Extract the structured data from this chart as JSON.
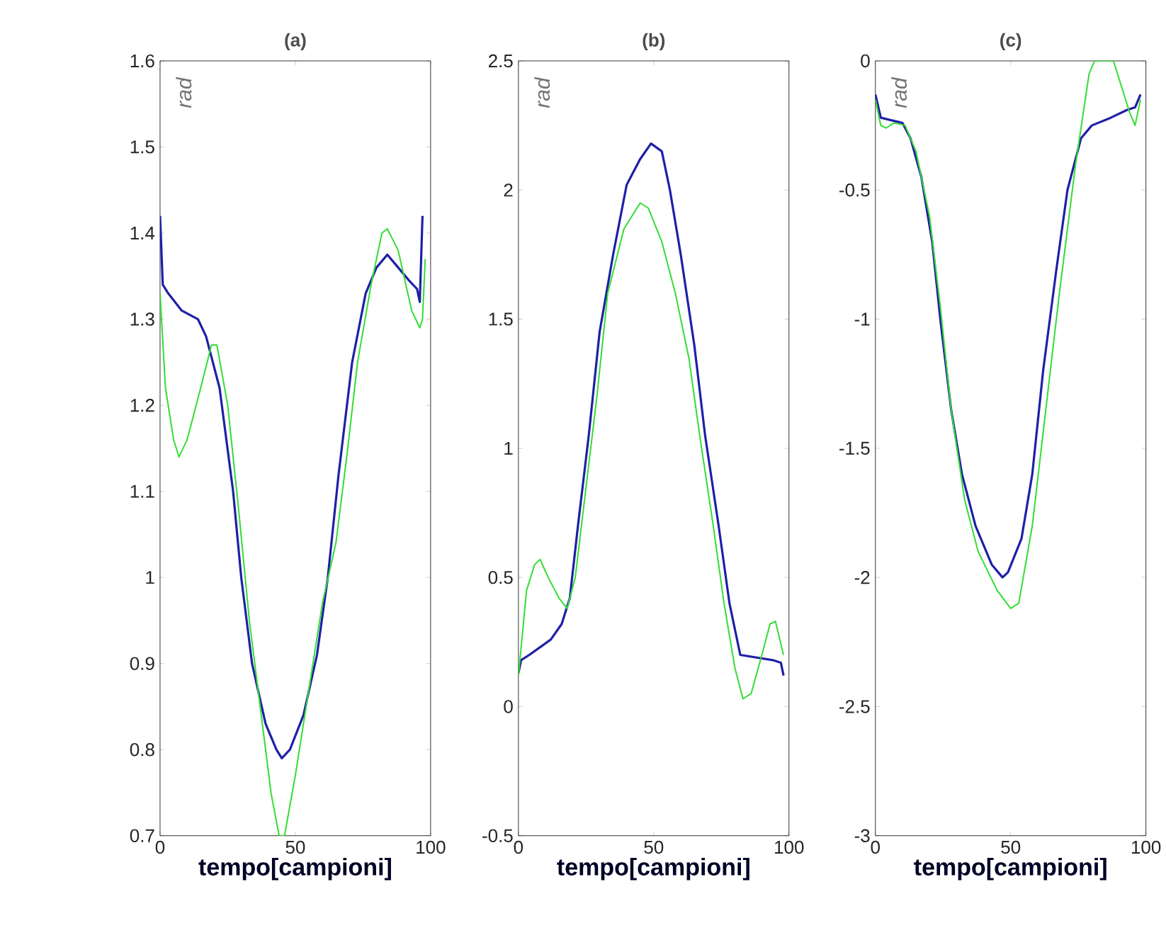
{
  "chart_data": [
    {
      "type": "line",
      "title": "(a)",
      "xlabel": "tempo[campioni]",
      "ylabel": "rad",
      "xlim": [
        0,
        100
      ],
      "ylim": [
        0.7,
        1.6
      ],
      "xticks": [
        0,
        50,
        100
      ],
      "yticks": [
        0.7,
        0.8,
        0.9,
        1,
        1.1,
        1.2,
        1.3,
        1.4,
        1.5,
        1.6
      ],
      "series": [
        {
          "color": "#1f1fa8",
          "x": [
            0,
            1,
            3,
            8,
            14,
            17,
            22,
            27,
            30,
            34,
            39,
            43,
            45,
            48,
            53,
            58,
            62,
            66,
            71,
            76,
            80,
            84,
            88,
            92,
            95,
            96,
            97
          ],
          "values": [
            1.42,
            1.34,
            1.33,
            1.31,
            1.3,
            1.28,
            1.22,
            1.1,
            1.0,
            0.9,
            0.83,
            0.8,
            0.79,
            0.8,
            0.84,
            0.91,
            1.0,
            1.12,
            1.25,
            1.33,
            1.36,
            1.375,
            1.36,
            1.345,
            1.335,
            1.32,
            1.42
          ]
        },
        {
          "color": "#33dd33",
          "x": [
            0,
            2,
            5,
            7,
            10,
            15,
            19,
            21,
            25,
            29,
            33,
            37,
            41,
            44,
            46,
            50,
            55,
            60,
            65,
            69,
            73,
            78,
            82,
            84,
            88,
            93,
            96,
            97,
            98
          ],
          "values": [
            1.33,
            1.22,
            1.16,
            1.14,
            1.16,
            1.22,
            1.27,
            1.27,
            1.2,
            1.08,
            0.95,
            0.85,
            0.75,
            0.7,
            0.7,
            0.77,
            0.87,
            0.97,
            1.04,
            1.14,
            1.25,
            1.34,
            1.4,
            1.405,
            1.38,
            1.31,
            1.29,
            1.3,
            1.37
          ]
        }
      ]
    },
    {
      "type": "line",
      "title": "(b)",
      "xlabel": "tempo[campioni]",
      "ylabel": "rad",
      "xlim": [
        0,
        100
      ],
      "ylim": [
        -0.5,
        2.5
      ],
      "xticks": [
        0,
        50,
        100
      ],
      "yticks": [
        -0.5,
        0,
        0.5,
        1,
        1.5,
        2,
        2.5
      ],
      "series": [
        {
          "color": "#1f1fa8",
          "x": [
            0,
            1,
            4,
            8,
            12,
            16,
            19,
            22,
            26,
            30,
            35,
            40,
            45,
            49,
            53,
            56,
            60,
            65,
            69,
            74,
            78,
            82,
            88,
            94,
            97,
            98
          ],
          "values": [
            0.13,
            0.18,
            0.2,
            0.23,
            0.26,
            0.32,
            0.42,
            0.7,
            1.05,
            1.45,
            1.75,
            2.02,
            2.12,
            2.18,
            2.15,
            2.0,
            1.75,
            1.4,
            1.05,
            0.7,
            0.4,
            0.2,
            0.19,
            0.18,
            0.17,
            0.12
          ]
        },
        {
          "color": "#33dd33",
          "x": [
            0,
            3,
            6,
            8,
            11,
            15,
            18,
            21,
            25,
            29,
            33,
            39,
            45,
            48,
            53,
            58,
            63,
            67,
            72,
            76,
            80,
            83,
            86,
            90,
            93,
            95,
            98
          ],
          "values": [
            0.12,
            0.45,
            0.55,
            0.57,
            0.5,
            0.42,
            0.38,
            0.5,
            0.85,
            1.2,
            1.6,
            1.85,
            1.95,
            1.93,
            1.8,
            1.6,
            1.35,
            1.05,
            0.7,
            0.4,
            0.15,
            0.03,
            0.05,
            0.2,
            0.32,
            0.33,
            0.2
          ]
        }
      ]
    },
    {
      "type": "line",
      "title": "(c)",
      "xlabel": "tempo[campioni]",
      "ylabel": "rad",
      "xlim": [
        0,
        100
      ],
      "ylim": [
        -3,
        0
      ],
      "xticks": [
        0,
        50,
        100
      ],
      "yticks": [
        -3,
        -2.5,
        -2,
        -1.5,
        -1,
        -0.5,
        0
      ],
      "series": [
        {
          "color": "#1f1fa8",
          "x": [
            0,
            2,
            6,
            10,
            13,
            17,
            21,
            24,
            28,
            32,
            37,
            43,
            47,
            49,
            54,
            58,
            62,
            67,
            71,
            76,
            80,
            87,
            93,
            96,
            98
          ],
          "values": [
            -0.13,
            -0.22,
            -0.23,
            -0.24,
            -0.3,
            -0.45,
            -0.7,
            -1.0,
            -1.35,
            -1.6,
            -1.8,
            -1.95,
            -2.0,
            -1.98,
            -1.85,
            -1.6,
            -1.2,
            -0.8,
            -0.5,
            -0.3,
            -0.25,
            -0.22,
            -0.19,
            -0.18,
            -0.13
          ]
        },
        {
          "color": "#33dd33",
          "x": [
            0,
            2,
            4,
            7,
            11,
            15,
            20,
            24,
            28,
            33,
            38,
            45,
            50,
            53,
            58,
            63,
            68,
            74,
            79,
            81,
            88,
            91,
            94,
            96,
            98
          ],
          "values": [
            -0.15,
            -0.25,
            -0.26,
            -0.24,
            -0.25,
            -0.35,
            -0.6,
            -0.95,
            -1.35,
            -1.7,
            -1.9,
            -2.05,
            -2.12,
            -2.1,
            -1.8,
            -1.35,
            -0.9,
            -0.4,
            -0.05,
            0,
            0,
            -0.1,
            -0.2,
            -0.25,
            -0.15
          ]
        }
      ]
    }
  ]
}
